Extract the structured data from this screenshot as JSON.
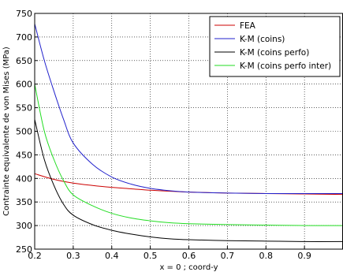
{
  "chart_data": {
    "type": "line",
    "title": "",
    "xlabel": "x = 0 ; coord-y",
    "ylabel": "Contrainte equivalente de von Mises (MPa)",
    "xlim": [
      0.2,
      1.0
    ],
    "ylim": [
      250,
      750
    ],
    "xticks": [
      0.2,
      0.3,
      0.4,
      0.5,
      0.6,
      0.7,
      0.8,
      0.9
    ],
    "xtick_labels": [
      "0.2",
      "0.3",
      "0.4",
      "0.5",
      "0.6",
      "0.7",
      "0.8",
      "0.9"
    ],
    "yticks": [
      250,
      300,
      350,
      400,
      450,
      500,
      550,
      600,
      650,
      700,
      750
    ],
    "ytick_labels": [
      "250",
      "300",
      "350",
      "400",
      "450",
      "500",
      "550",
      "600",
      "650",
      "700",
      "750"
    ],
    "grid": true,
    "legend_position": "top-right",
    "series": [
      {
        "name": "FEA",
        "color": "#cc0000",
        "x": [
          0.2,
          0.25,
          0.3,
          0.35,
          0.4,
          0.45,
          0.5,
          0.55,
          0.6,
          0.7,
          0.8,
          0.9,
          1.0
        ],
        "y": [
          410,
          398,
          390,
          385,
          381,
          378,
          375,
          373,
          371,
          369,
          368,
          367,
          366
        ]
      },
      {
        "name": "K-M (coins)",
        "color": "#2222cc",
        "x": [
          0.2,
          0.225,
          0.25,
          0.275,
          0.3,
          0.35,
          0.4,
          0.45,
          0.5,
          0.55,
          0.6,
          0.7,
          0.8,
          0.9,
          1.0
        ],
        "y": [
          728,
          650,
          585,
          525,
          475,
          430,
          403,
          388,
          379,
          374,
          371,
          369,
          368,
          368,
          368
        ]
      },
      {
        "name": "K-M (coins perfo)",
        "color": "#000000",
        "x": [
          0.2,
          0.225,
          0.25,
          0.275,
          0.3,
          0.35,
          0.4,
          0.45,
          0.5,
          0.55,
          0.6,
          0.7,
          0.8,
          0.9,
          1.0
        ],
        "y": [
          525,
          440,
          385,
          345,
          322,
          302,
          290,
          282,
          276,
          272,
          270,
          268,
          267,
          266,
          266
        ]
      },
      {
        "name": "K-M (coins perfo inter)",
        "color": "#22dd22",
        "x": [
          0.2,
          0.225,
          0.25,
          0.275,
          0.3,
          0.35,
          0.4,
          0.45,
          0.5,
          0.55,
          0.6,
          0.7,
          0.8,
          0.9,
          1.0
        ],
        "y": [
          600,
          500,
          440,
          395,
          365,
          342,
          326,
          316,
          310,
          306,
          304,
          302,
          301,
          300,
          300
        ]
      }
    ]
  }
}
